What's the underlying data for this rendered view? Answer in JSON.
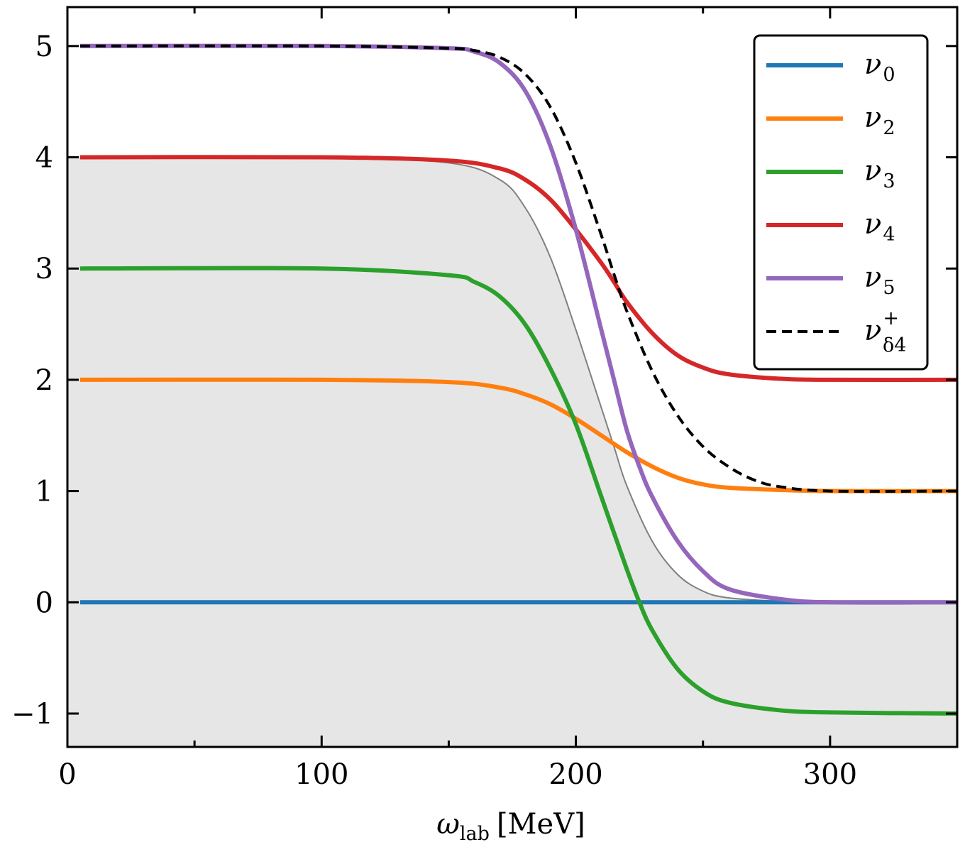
{
  "chart_data": {
    "type": "line",
    "title": "",
    "xlabel": {
      "symbol": "ω",
      "subscript": "lab",
      "unit": "[MeV]"
    },
    "ylabel": "",
    "xlim": [
      0,
      350
    ],
    "ylim": [
      -1.3,
      5.35
    ],
    "xticks": [
      0,
      100,
      200,
      300
    ],
    "xtick_labels": [
      "0",
      "100",
      "200",
      "300"
    ],
    "xminor": [
      50,
      150,
      250
    ],
    "yticks": [
      -1,
      0,
      1,
      2,
      3,
      4,
      5
    ],
    "ytick_labels": [
      "−1",
      "0",
      "1",
      "2",
      "3",
      "4",
      "5"
    ],
    "grid": false,
    "legend_position": "top-right",
    "shaded_band": {
      "description": "region between the thin grey reference curve and the bottom axis",
      "color": "#e6e6e6"
    },
    "reference_curve": {
      "color": "#808080",
      "x": [
        5,
        50,
        100,
        150,
        170,
        180,
        190,
        200,
        210,
        215,
        220,
        230,
        240,
        250,
        260,
        280,
        300,
        350
      ],
      "y": [
        4.0,
        4.0,
        4.0,
        3.95,
        3.8,
        3.55,
        3.1,
        2.45,
        1.75,
        1.4,
        1.05,
        0.55,
        0.25,
        0.1,
        0.04,
        0.01,
        0.0,
        0.0
      ]
    },
    "series": [
      {
        "name": "ν",
        "sub": "0",
        "sup": "",
        "color": "#1f77b4",
        "dash": false,
        "x": [
          5,
          350
        ],
        "y": [
          0,
          0
        ]
      },
      {
        "name": "ν",
        "sub": "2",
        "sup": "",
        "color": "#ff7f0e",
        "dash": false,
        "x": [
          5,
          100,
          150,
          170,
          180,
          190,
          200,
          210,
          220,
          230,
          240,
          250,
          260,
          280,
          300,
          350
        ],
        "y": [
          2.0,
          2.0,
          1.98,
          1.93,
          1.87,
          1.78,
          1.65,
          1.5,
          1.35,
          1.22,
          1.12,
          1.06,
          1.03,
          1.01,
          1.0,
          1.0
        ]
      },
      {
        "name": "ν",
        "sub": "3",
        "sup": "",
        "color": "#2ca02c",
        "dash": false,
        "x": [
          5,
          100,
          150,
          160,
          170,
          180,
          190,
          200,
          210,
          220,
          225,
          230,
          240,
          250,
          260,
          280,
          300,
          350
        ],
        "y": [
          3.0,
          3.0,
          2.94,
          2.88,
          2.75,
          2.5,
          2.1,
          1.6,
          0.95,
          0.3,
          0.0,
          -0.25,
          -0.6,
          -0.8,
          -0.9,
          -0.97,
          -0.99,
          -1.0
        ]
      },
      {
        "name": "ν",
        "sub": "4",
        "sup": "",
        "color": "#d62728",
        "dash": false,
        "x": [
          5,
          100,
          150,
          170,
          180,
          190,
          200,
          210,
          215,
          220,
          230,
          240,
          250,
          260,
          280,
          300,
          350
        ],
        "y": [
          4.0,
          4.0,
          3.97,
          3.9,
          3.8,
          3.62,
          3.35,
          3.05,
          2.88,
          2.7,
          2.42,
          2.22,
          2.11,
          2.05,
          2.01,
          2.0,
          2.0
        ]
      },
      {
        "name": "ν",
        "sub": "5",
        "sup": "",
        "color": "#9467bd",
        "dash": false,
        "x": [
          5,
          100,
          150,
          160,
          170,
          180,
          190,
          200,
          210,
          215,
          220,
          225,
          230,
          240,
          250,
          260,
          280,
          300,
          350
        ],
        "y": [
          5.0,
          5.0,
          4.98,
          4.95,
          4.85,
          4.6,
          4.1,
          3.35,
          2.45,
          2.0,
          1.55,
          1.22,
          0.95,
          0.55,
          0.28,
          0.12,
          0.03,
          0.0,
          0.0
        ]
      },
      {
        "name": "ν",
        "sub": "δ4",
        "sup": "+",
        "color": "#000000",
        "dash": true,
        "x": [
          5,
          100,
          150,
          160,
          170,
          180,
          190,
          200,
          210,
          215,
          220,
          230,
          240,
          250,
          260,
          270,
          280,
          300,
          350
        ],
        "y": [
          5.0,
          5.0,
          4.98,
          4.96,
          4.9,
          4.75,
          4.45,
          3.95,
          3.3,
          2.95,
          2.62,
          2.08,
          1.68,
          1.4,
          1.22,
          1.1,
          1.04,
          1.0,
          1.0
        ]
      }
    ]
  }
}
